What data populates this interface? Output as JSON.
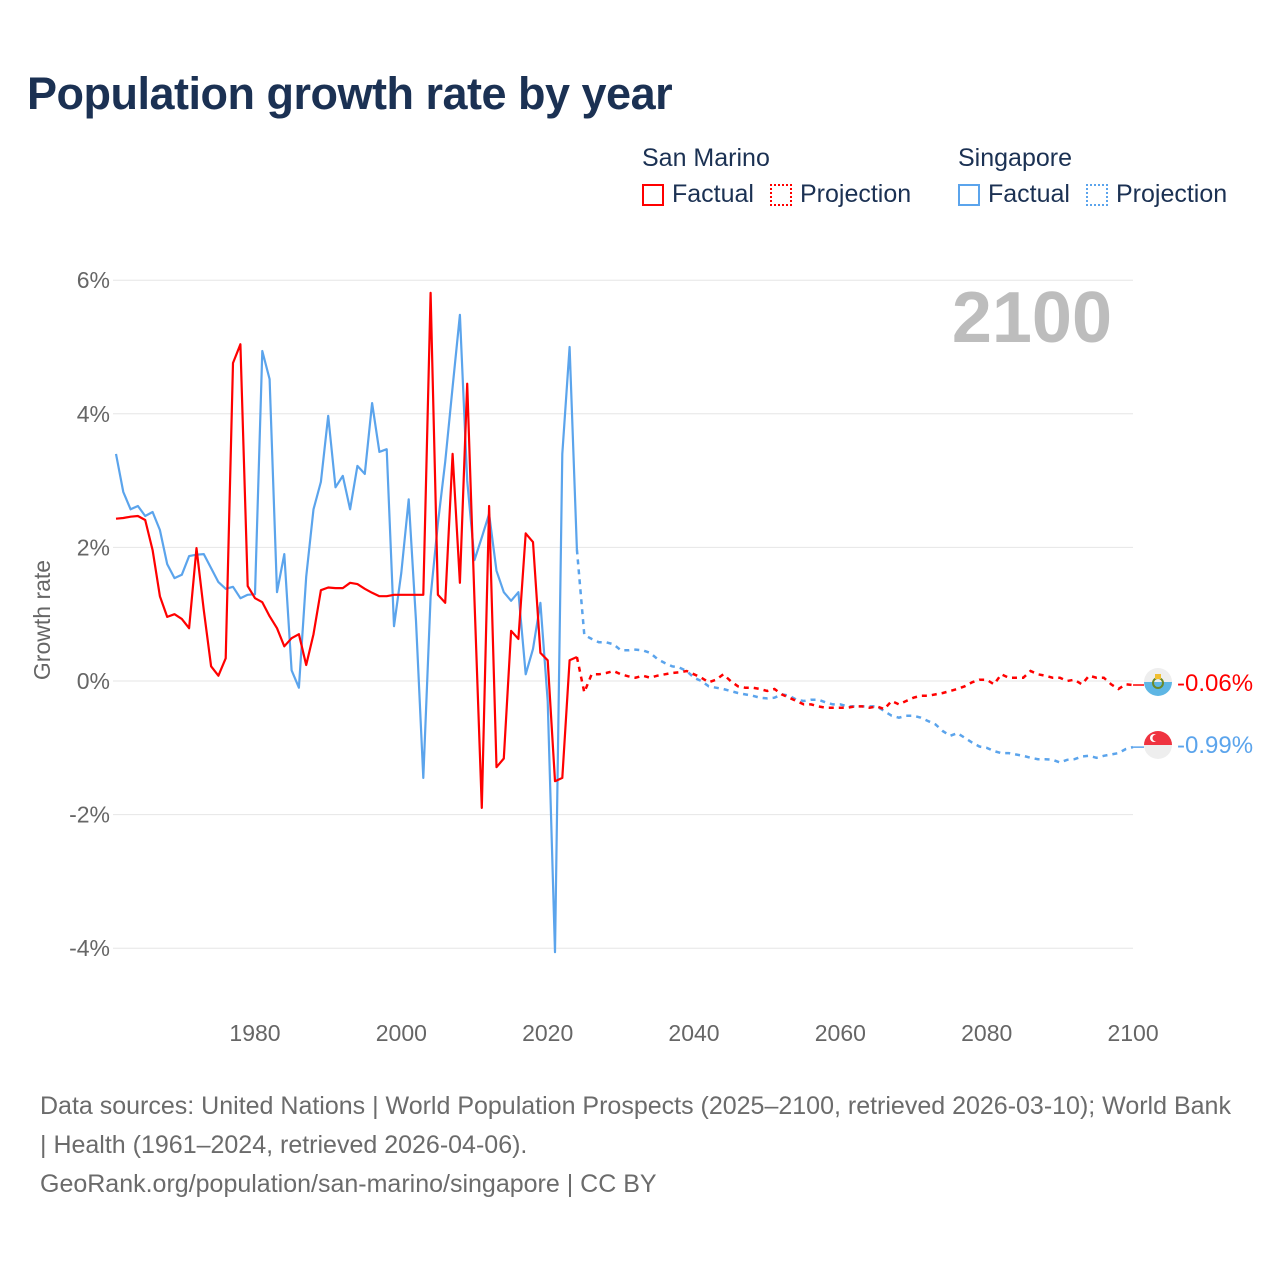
{
  "title": "Population growth rate by year",
  "legend": {
    "groups": [
      {
        "name": "San Marino",
        "color": "#ff0000",
        "factual": "Factual",
        "projection": "Projection"
      },
      {
        "name": "Singapore",
        "color": "#5ba4ec",
        "factual": "Factual",
        "projection": "Projection"
      }
    ]
  },
  "year_watermark": "2100",
  "footer": {
    "sources": "Data sources: United Nations | World Population Prospects (2025–2100, retrieved 2026-03-10); World Bank | Health (1961–2024, retrieved 2026-04-06).",
    "link": "GeoRank.org/population/san-marino/singapore | CC BY"
  },
  "chart_data": {
    "type": "line",
    "title": "Population growth rate by year",
    "xlabel": "",
    "ylabel": "Growth rate",
    "xlim": [
      1961,
      2100
    ],
    "ylim": [
      -4.7,
      6
    ],
    "x_ticks": [
      1980,
      2000,
      2020,
      2040,
      2060,
      2080,
      2100
    ],
    "x_tick_labels": [
      "1980",
      "2000",
      "2020",
      "2040",
      "2060",
      "2080",
      "2100"
    ],
    "y_ticks": [
      6,
      4,
      2,
      0,
      -2,
      -4
    ],
    "y_tick_labels": [
      "6%",
      "4%",
      "2%",
      "0%",
      "-2%",
      "-4%"
    ],
    "grid": "horizontal",
    "legend_position": "top-right",
    "series": [
      {
        "name": "San Marino",
        "color": "#ff0000",
        "end_label": "-0.06%",
        "factual": {
          "start_year": 1961,
          "values": [
            2.43,
            2.44,
            2.46,
            2.47,
            2.41,
            1.96,
            1.27,
            0.96,
            1.0,
            0.93,
            0.79,
            1.99,
            1.06,
            0.22,
            0.08,
            0.34,
            4.76,
            5.04,
            1.42,
            1.24,
            1.18,
            0.97,
            0.79,
            0.52,
            0.64,
            0.7,
            0.24,
            0.7,
            1.36,
            1.4,
            1.39,
            1.39,
            1.47,
            1.45,
            1.38,
            1.32,
            1.27,
            1.27,
            1.29,
            1.29,
            1.29,
            1.29,
            1.29,
            5.81,
            1.29,
            1.17,
            3.4,
            1.47,
            4.45,
            1.2,
            -1.9,
            2.62,
            -1.29,
            -1.16,
            0.75,
            0.63,
            2.21,
            2.08,
            0.42,
            0.31,
            -1.5,
            -1.45,
            0.31,
            0.36
          ]
        },
        "projection": {
          "start_year": 2024,
          "values": [
            0.36,
            -0.17,
            0.1,
            0.1,
            0.12,
            0.15,
            0.1,
            0.07,
            0.05,
            0.08,
            0.05,
            0.08,
            0.1,
            0.12,
            0.13,
            0.15,
            0.1,
            0.05,
            -0.02,
            0.02,
            0.1,
            0.0,
            -0.08,
            -0.1,
            -0.1,
            -0.12,
            -0.15,
            -0.12,
            -0.2,
            -0.25,
            -0.3,
            -0.35,
            -0.35,
            -0.38,
            -0.4,
            -0.4,
            -0.4,
            -0.4,
            -0.38,
            -0.38,
            -0.4,
            -0.38,
            -0.42,
            -0.3,
            -0.35,
            -0.3,
            -0.25,
            -0.22,
            -0.22,
            -0.2,
            -0.18,
            -0.15,
            -0.12,
            -0.08,
            -0.02,
            0.02,
            0.02,
            -0.05,
            0.1,
            0.05,
            0.05,
            0.05,
            0.15,
            0.1,
            0.08,
            0.05,
            0.05,
            0.0,
            0.02,
            -0.05,
            0.08,
            0.05,
            0.05,
            -0.05,
            -0.12,
            -0.05,
            -0.06
          ]
        }
      },
      {
        "name": "Singapore",
        "color": "#5ba4ec",
        "end_label": "-0.99%",
        "factual": {
          "start_year": 1961,
          "values": [
            3.4,
            2.83,
            2.57,
            2.62,
            2.47,
            2.53,
            2.26,
            1.75,
            1.54,
            1.59,
            1.87,
            1.89,
            1.9,
            1.69,
            1.48,
            1.38,
            1.41,
            1.24,
            1.29,
            1.3,
            4.94,
            4.52,
            1.33,
            1.9,
            0.16,
            -0.1,
            1.56,
            2.57,
            2.98,
            3.97,
            2.9,
            3.07,
            2.57,
            3.22,
            3.1,
            4.16,
            3.43,
            3.47,
            0.82,
            1.62,
            2.72,
            0.9,
            -1.45,
            1.26,
            2.36,
            3.28,
            4.4,
            5.48,
            3.0,
            1.81,
            2.15,
            2.5,
            1.65,
            1.33,
            1.2,
            1.33,
            0.1,
            0.48,
            1.17,
            -0.3,
            -4.06,
            3.4,
            5.0,
            1.97
          ]
        },
        "projection": {
          "start_year": 2024,
          "values": [
            1.97,
            0.69,
            0.63,
            0.58,
            0.58,
            0.55,
            0.46,
            0.46,
            0.47,
            0.46,
            0.42,
            0.33,
            0.27,
            0.22,
            0.2,
            0.15,
            0.05,
            0.0,
            -0.08,
            -0.1,
            -0.12,
            -0.15,
            -0.18,
            -0.2,
            -0.22,
            -0.25,
            -0.26,
            -0.25,
            -0.2,
            -0.22,
            -0.28,
            -0.3,
            -0.28,
            -0.28,
            -0.32,
            -0.35,
            -0.35,
            -0.38,
            -0.38,
            -0.38,
            -0.38,
            -0.38,
            -0.45,
            -0.52,
            -0.55,
            -0.52,
            -0.52,
            -0.55,
            -0.6,
            -0.65,
            -0.75,
            -0.82,
            -0.78,
            -0.85,
            -0.92,
            -0.98,
            -1.0,
            -1.05,
            -1.08,
            -1.08,
            -1.1,
            -1.12,
            -1.15,
            -1.17,
            -1.17,
            -1.18,
            -1.22,
            -1.18,
            -1.17,
            -1.13,
            -1.12,
            -1.15,
            -1.12,
            -1.1,
            -1.08,
            -1.02,
            -0.99
          ]
        }
      }
    ]
  }
}
